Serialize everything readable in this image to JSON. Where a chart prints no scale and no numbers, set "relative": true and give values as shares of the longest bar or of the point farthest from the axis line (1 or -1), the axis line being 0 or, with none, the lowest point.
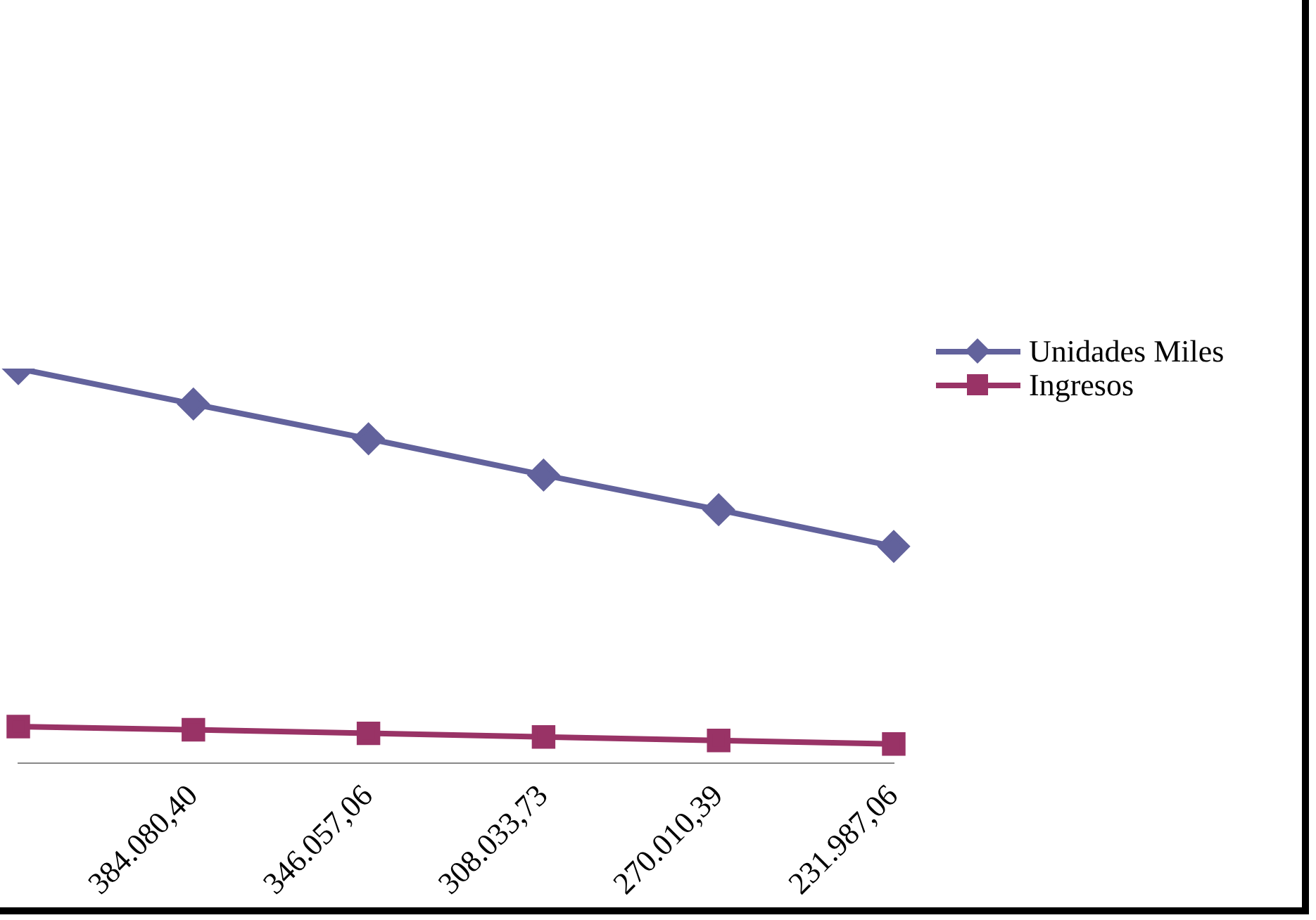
{
  "chart_data": {
    "type": "line",
    "relative": true,
    "categories": [
      null,
      "384.080,40",
      "346.057,06",
      "308.033,73",
      "270.010,39",
      "231.987,06"
    ],
    "series": [
      {
        "name": "Unidades Miles",
        "color": "#62629c",
        "marker": "diamond",
        "values": [
          1,
          0.91,
          0.822,
          0.73,
          0.642,
          0.549
        ]
      },
      {
        "name": "Ingresos",
        "color": "#993366",
        "marker": "square",
        "values": [
          0.092,
          0.084,
          0.075,
          0.066,
          0.057,
          0.048
        ]
      }
    ],
    "legend": "right",
    "grid": false
  }
}
